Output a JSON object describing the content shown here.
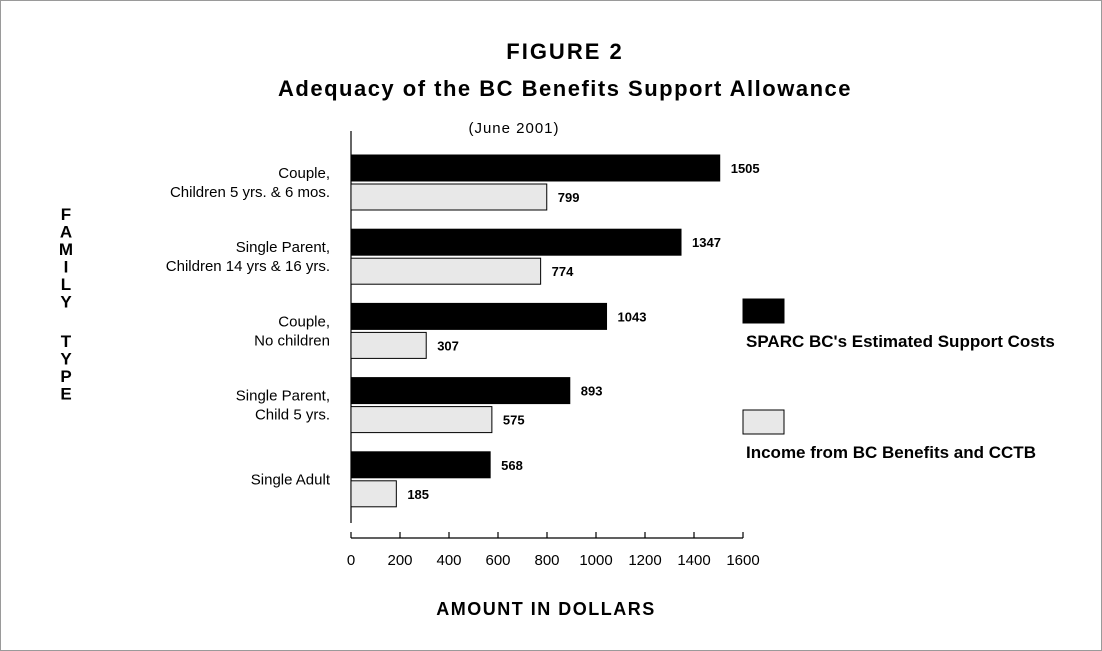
{
  "figure_label": "FIGURE 2",
  "chart_data": {
    "type": "bar",
    "orientation": "horizontal",
    "title": "Adequacy of the BC Benefits Support Allowance",
    "subtitle": "(June 2001)",
    "xlabel": "AMOUNT IN DOLLARS",
    "ylabel": "FAMILY TYPE",
    "xlim": [
      0,
      1600
    ],
    "xticks": [
      0,
      200,
      400,
      600,
      800,
      1000,
      1200,
      1400,
      1600
    ],
    "categories": [
      [
        "Couple,",
        "Children 5 yrs. & 6 mos."
      ],
      [
        "Single Parent,",
        "Children 14 yrs & 16 yrs."
      ],
      [
        "Couple,",
        "No children"
      ],
      [
        "Single Parent,",
        "Child 5 yrs."
      ],
      [
        "Single Adult"
      ]
    ],
    "series": [
      {
        "name": "SPARC BC's Estimated Support Costs",
        "color": "#000000",
        "values": [
          1505,
          1347,
          1043,
          893,
          568
        ]
      },
      {
        "name": "Income from BC Benefits and CCTB",
        "color": "#e8e8e8",
        "values": [
          799,
          774,
          307,
          575,
          185
        ]
      }
    ],
    "legend_position": "right",
    "grid": false
  }
}
